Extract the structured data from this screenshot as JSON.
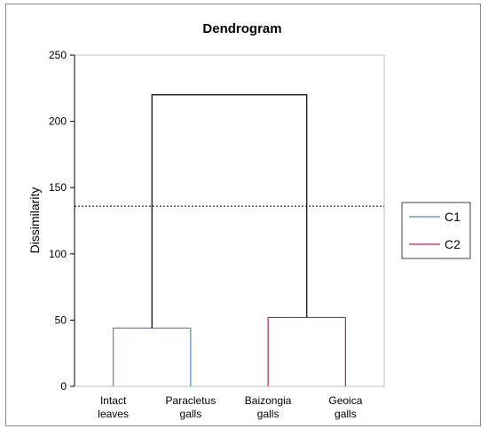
{
  "chart_data": {
    "type": "dendrogram",
    "title": "Dendrogram",
    "xlabel": "",
    "ylabel": "Dissimilarity",
    "ylim": [
      0,
      250
    ],
    "yticks": [
      0,
      50,
      100,
      150,
      200,
      250
    ],
    "grid": false,
    "legend_position": "right",
    "leaves": [
      {
        "label": [
          "Intact",
          "leaves"
        ]
      },
      {
        "label": [
          "Paracletus",
          "galls"
        ]
      },
      {
        "label": [
          "Baizongia",
          "galls"
        ]
      },
      {
        "label": [
          "Geoica",
          "galls"
        ]
      }
    ],
    "merges": [
      {
        "left": 0,
        "right": 1,
        "height": 44,
        "cluster": "C1",
        "color": "#5b8bbf"
      },
      {
        "left": 2,
        "right": 3,
        "height": 52,
        "cluster": "C2",
        "color": "#c0245a"
      },
      {
        "left": "C1",
        "right": "C2",
        "height": 220,
        "color": "#000000"
      }
    ],
    "cut_line": 136,
    "legend": [
      {
        "name": "C1",
        "color": "#5b8bbf"
      },
      {
        "name": "C2",
        "color": "#c0245a"
      }
    ]
  }
}
